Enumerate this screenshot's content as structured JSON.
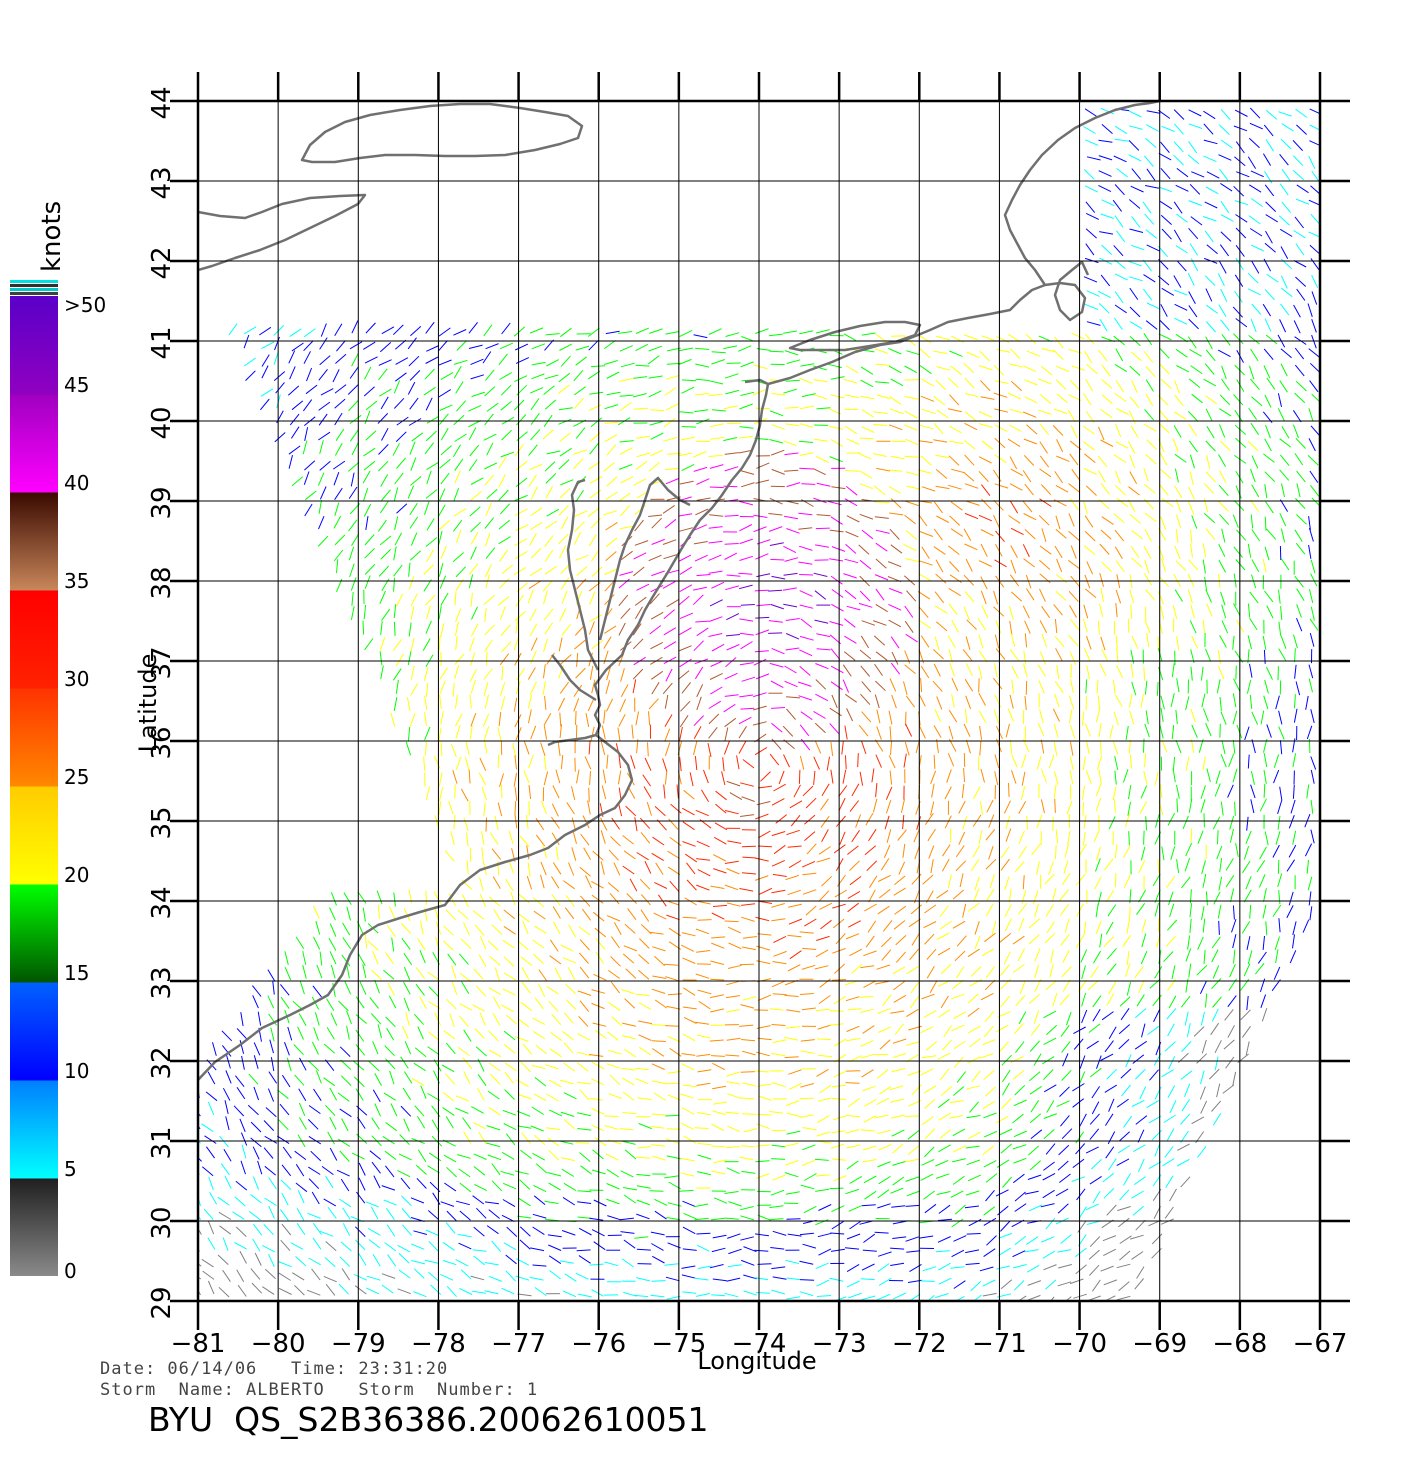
{
  "colorbar": {
    "unit_label": "knots",
    "labels": [
      ">50",
      "45",
      "40",
      "35",
      "30",
      "25",
      "20",
      "15",
      "10",
      "5",
      "0"
    ]
  },
  "axes": {
    "xlabel": "Longitude",
    "ylabel": "Latitude",
    "lon_ticks": [
      -81,
      -80,
      -79,
      -78,
      -77,
      -76,
      -75,
      -74,
      -73,
      -72,
      -71,
      -70,
      -69,
      -68,
      -67
    ],
    "lat_ticks": [
      29,
      30,
      31,
      32,
      33,
      34,
      35,
      36,
      37,
      38,
      39,
      40,
      41,
      42,
      43,
      44
    ],
    "lon_range": [
      -81,
      -67
    ],
    "lat_range": [
      29,
      44
    ],
    "grid": true
  },
  "info": {
    "line1": "Date: 06/14/06   Time: 23:31:20",
    "line2": "Storm  Name: ALBERTO   Storm  Number: 1",
    "product": "BYU  QS_S2B36386.20062610051"
  },
  "colors": {
    "coastline": "#707070",
    "grid": "#000000",
    "speed_bands": [
      "#808080",
      "#00ffff",
      "#0000ff",
      "#00ff00",
      "#ffff00",
      "#ff8c00",
      "#ff2a00",
      "#b05a30",
      "#ff00ff",
      "#6a00c8"
    ]
  }
}
